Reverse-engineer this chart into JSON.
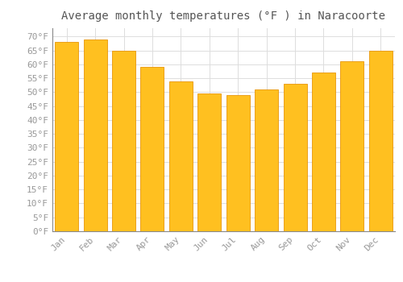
{
  "title": "Average monthly temperatures (°F ) in Naracoorte",
  "months": [
    "Jan",
    "Feb",
    "Mar",
    "Apr",
    "May",
    "Jun",
    "Jul",
    "Aug",
    "Sep",
    "Oct",
    "Nov",
    "Dec"
  ],
  "values": [
    68,
    69,
    65,
    59,
    54,
    49.5,
    49,
    51,
    53,
    57,
    61,
    65
  ],
  "bar_color": "#FFC020",
  "bar_edge_color": "#E8950A",
  "background_color": "#FFFFFF",
  "grid_color": "#DDDDDD",
  "tick_label_color": "#999999",
  "title_color": "#555555",
  "ylim": [
    0,
    73
  ],
  "yticks": [
    0,
    5,
    10,
    15,
    20,
    25,
    30,
    35,
    40,
    45,
    50,
    55,
    60,
    65,
    70
  ],
  "title_fontsize": 10,
  "tick_fontsize": 8,
  "font_family": "monospace",
  "bar_width": 0.82
}
